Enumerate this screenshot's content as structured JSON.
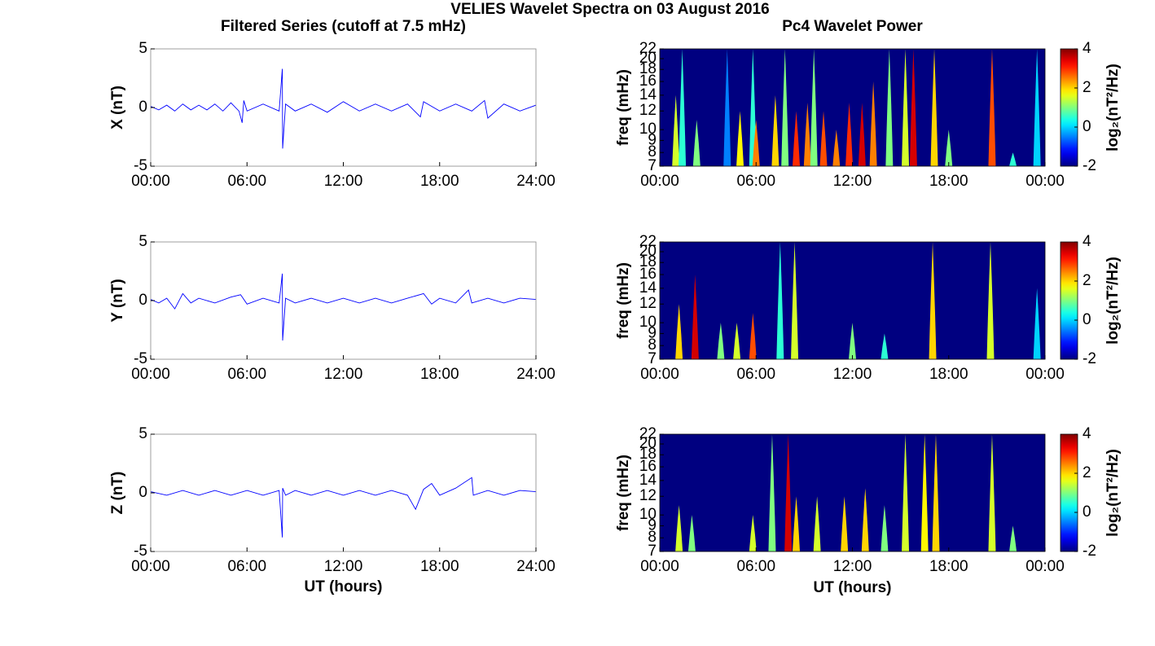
{
  "title": "VELIES Wavelet Spectra on 03 August 2016",
  "chart_data": [
    {
      "type": "line",
      "title": "Filtered Series (cutoff at 7.5 mHz)",
      "ylabel": "X (nT)",
      "color": "#0000ff",
      "xlim": [
        0,
        24
      ],
      "xticks": [
        {
          "value": 0,
          "label": "00:00"
        },
        {
          "value": 6,
          "label": "06:00"
        },
        {
          "value": 12,
          "label": "12:00"
        },
        {
          "value": 18,
          "label": "18:00"
        },
        {
          "value": 24,
          "label": "24:00"
        }
      ],
      "ylim": [
        -5,
        5
      ],
      "yticks": [
        -5,
        0,
        5
      ],
      "x": [
        0,
        0.5,
        1,
        1.5,
        2,
        2.5,
        3,
        3.5,
        4,
        4.5,
        5,
        5.5,
        5.7,
        5.8,
        6,
        7,
        8,
        8.2,
        8.22,
        8.4,
        9,
        10,
        11,
        12,
        13,
        14,
        15,
        16,
        16.8,
        17,
        18,
        19,
        20,
        20.8,
        21,
        22,
        23,
        24
      ],
      "values": [
        0.1,
        -0.2,
        0.2,
        -0.3,
        0.3,
        -0.2,
        0.2,
        -0.2,
        0.3,
        -0.3,
        0.4,
        -0.3,
        -1.3,
        0.6,
        -0.3,
        0.3,
        -0.3,
        3.3,
        -3.5,
        0.3,
        -0.3,
        0.3,
        -0.4,
        0.5,
        -0.3,
        0.3,
        -0.3,
        0.3,
        -0.8,
        0.5,
        -0.3,
        0.3,
        -0.3,
        0.6,
        -0.9,
        0.3,
        -0.3,
        0.2
      ]
    },
    {
      "type": "heatmap",
      "title": "Pc4 Wavelet Power",
      "ylabel": "freq (mHz)",
      "colorbar_label": "log₂(nT²/Hz)",
      "colormap": "jet",
      "xlim": [
        0,
        24
      ],
      "xticks": [
        {
          "value": 0,
          "label": "00:00"
        },
        {
          "value": 6,
          "label": "06:00"
        },
        {
          "value": 12,
          "label": "12:00"
        },
        {
          "value": 18,
          "label": "18:00"
        },
        {
          "value": 24,
          "label": "00:00"
        }
      ],
      "ylim": [
        7,
        22
      ],
      "yticks": [
        7,
        8,
        9,
        10,
        12,
        14,
        16,
        18,
        20,
        22
      ],
      "log_y": true,
      "clim": [
        -2,
        4
      ],
      "cticks": [
        -2,
        0,
        2,
        4
      ],
      "x": [
        1.0,
        1.4,
        2.3,
        4.2,
        5.0,
        5.8,
        6.0,
        7.2,
        7.8,
        8.5,
        9.2,
        9.6,
        10.2,
        11.0,
        11.8,
        12.6,
        13.3,
        14.3,
        15.3,
        15.8,
        17.1,
        18.0,
        20.7,
        22.0,
        23.5
      ],
      "fmax": [
        14,
        22,
        11,
        22,
        12,
        22,
        11,
        14,
        22,
        12,
        13,
        22,
        12,
        10,
        13,
        13,
        16,
        22,
        22,
        22,
        22,
        10,
        22,
        8,
        22
      ],
      "values": [
        1.5,
        0.5,
        1,
        -0.5,
        1.8,
        0.5,
        2.5,
        2,
        1,
        3,
        2.5,
        1,
        2.8,
        2.5,
        3,
        3.5,
        2.5,
        1,
        1.5,
        3.5,
        2,
        1,
        2.8,
        0.5,
        0
      ]
    },
    {
      "type": "line",
      "ylabel": "Y (nT)",
      "color": "#0000ff",
      "xlim": [
        0,
        24
      ],
      "xticks": [
        {
          "value": 0,
          "label": "00:00"
        },
        {
          "value": 6,
          "label": "06:00"
        },
        {
          "value": 12,
          "label": "12:00"
        },
        {
          "value": 18,
          "label": "18:00"
        },
        {
          "value": 24,
          "label": "24:00"
        }
      ],
      "ylim": [
        -5,
        5
      ],
      "yticks": [
        -5,
        0,
        5
      ],
      "x": [
        0,
        0.5,
        1,
        1.5,
        2,
        2.5,
        3,
        4,
        5,
        5.6,
        6,
        7,
        8,
        8.2,
        8.22,
        8.4,
        9,
        10,
        11,
        12,
        13,
        14,
        15,
        16,
        17,
        17.5,
        18,
        19,
        19.8,
        20,
        21,
        22,
        23,
        24
      ],
      "values": [
        0.1,
        -0.2,
        0.2,
        -0.7,
        0.6,
        -0.2,
        0.2,
        -0.2,
        0.3,
        0.5,
        -0.3,
        0.2,
        -0.2,
        2.3,
        -3.4,
        0.2,
        -0.2,
        0.2,
        -0.2,
        0.2,
        -0.2,
        0.2,
        -0.2,
        0.2,
        0.6,
        -0.3,
        0.2,
        -0.2,
        0.9,
        -0.2,
        0.2,
        -0.2,
        0.2,
        0.1
      ]
    },
    {
      "type": "heatmap",
      "ylabel": "freq (mHz)",
      "colorbar_label": "log₂(nT²/Hz)",
      "colormap": "jet",
      "xlim": [
        0,
        24
      ],
      "xticks": [
        {
          "value": 0,
          "label": "00:00"
        },
        {
          "value": 6,
          "label": "06:00"
        },
        {
          "value": 12,
          "label": "12:00"
        },
        {
          "value": 18,
          "label": "18:00"
        },
        {
          "value": 24,
          "label": "00:00"
        }
      ],
      "ylim": [
        7,
        22
      ],
      "yticks": [
        7,
        8,
        9,
        10,
        12,
        14,
        16,
        18,
        20,
        22
      ],
      "log_y": true,
      "clim": [
        -2,
        4
      ],
      "cticks": [
        -2,
        0,
        2,
        4
      ],
      "x": [
        1.2,
        2.2,
        3.8,
        4.8,
        5.8,
        7.5,
        8.4,
        12.0,
        14.0,
        17.0,
        20.6,
        23.5
      ],
      "fmax": [
        12,
        16,
        10,
        10,
        11,
        22,
        22,
        10,
        9,
        22,
        22,
        14
      ],
      "values": [
        2,
        3.5,
        1,
        1.5,
        2.8,
        0.5,
        1.5,
        1,
        0.5,
        2,
        1.5,
        0
      ]
    },
    {
      "type": "line",
      "ylabel": "Z (nT)",
      "xlabel": "UT (hours)",
      "color": "#0000ff",
      "xlim": [
        0,
        24
      ],
      "xticks": [
        {
          "value": 0,
          "label": "00:00"
        },
        {
          "value": 6,
          "label": "06:00"
        },
        {
          "value": 12,
          "label": "12:00"
        },
        {
          "value": 18,
          "label": "18:00"
        },
        {
          "value": 24,
          "label": "24:00"
        }
      ],
      "ylim": [
        -5,
        5
      ],
      "yticks": [
        -5,
        0,
        5
      ],
      "x": [
        0,
        1,
        2,
        3,
        4,
        5,
        6,
        7,
        8,
        8.2,
        8.22,
        8.4,
        9,
        10,
        11,
        12,
        13,
        14,
        15,
        16,
        16.5,
        17,
        17.5,
        18,
        19,
        20,
        20.1,
        21,
        22,
        23,
        24
      ],
      "values": [
        0.1,
        -0.2,
        0.2,
        -0.2,
        0.2,
        -0.2,
        0.2,
        -0.2,
        0.2,
        -3.8,
        0.4,
        -0.2,
        0.2,
        -0.2,
        0.2,
        -0.2,
        0.2,
        -0.2,
        0.2,
        -0.2,
        -1.4,
        0.3,
        0.8,
        -0.2,
        0.4,
        1.3,
        -0.2,
        0.2,
        -0.2,
        0.2,
        0.1
      ]
    },
    {
      "type": "heatmap",
      "ylabel": "freq (mHz)",
      "xlabel": "UT (hours)",
      "colorbar_label": "log₂(nT²/Hz)",
      "colormap": "jet",
      "xlim": [
        0,
        24
      ],
      "xticks": [
        {
          "value": 0,
          "label": "00:00"
        },
        {
          "value": 6,
          "label": "06:00"
        },
        {
          "value": 12,
          "label": "12:00"
        },
        {
          "value": 18,
          "label": "18:00"
        },
        {
          "value": 24,
          "label": "00:00"
        }
      ],
      "ylim": [
        7,
        22
      ],
      "yticks": [
        7,
        8,
        9,
        10,
        12,
        14,
        16,
        18,
        20,
        22
      ],
      "log_y": true,
      "clim": [
        -2,
        4
      ],
      "cticks": [
        -2,
        0,
        2,
        4
      ],
      "x": [
        1.2,
        2.0,
        5.8,
        7.0,
        8.0,
        8.5,
        9.8,
        11.5,
        12.8,
        14.0,
        15.3,
        16.5,
        17.2,
        20.7,
        22.0
      ],
      "fmax": [
        11,
        10,
        10,
        22,
        22,
        12,
        12,
        12,
        13,
        11,
        22,
        22,
        22,
        22,
        9
      ],
      "values": [
        1.5,
        1,
        1.5,
        1,
        3.5,
        2,
        1.5,
        2,
        2,
        1,
        1.5,
        1.8,
        2,
        1.5,
        1
      ]
    }
  ]
}
